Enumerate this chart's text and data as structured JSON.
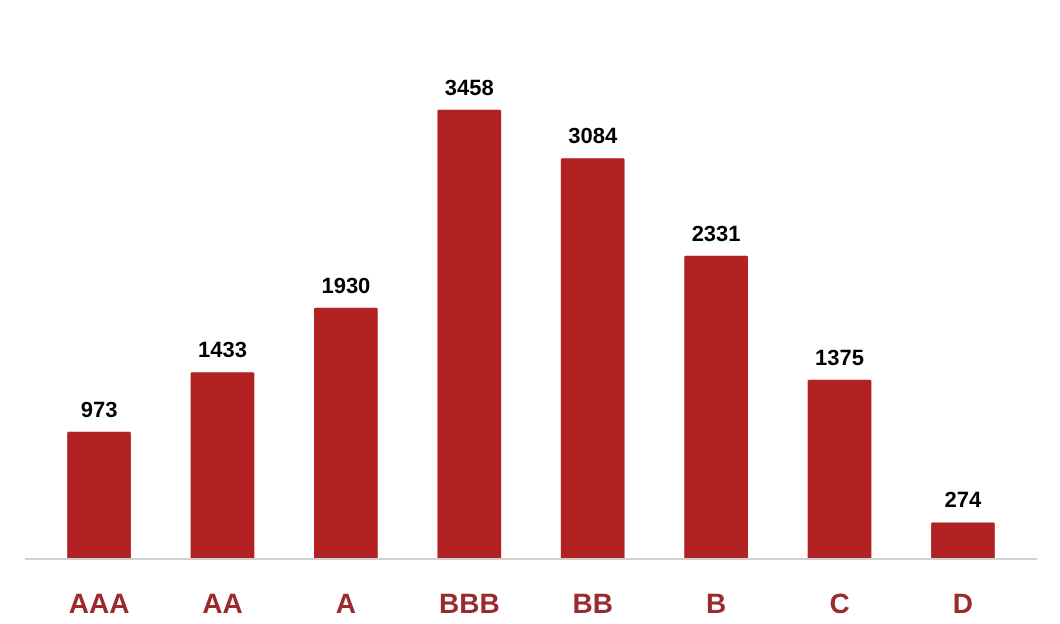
{
  "chart_data": {
    "type": "bar",
    "categories": [
      "AAA",
      "AA",
      "A",
      "BBB",
      "BB",
      "B",
      "C",
      "D"
    ],
    "values": [
      973,
      1433,
      1930,
      3458,
      3084,
      2331,
      1375,
      274
    ],
    "color": "#b22222",
    "data_labels": true,
    "tick_labels": "x"
  }
}
